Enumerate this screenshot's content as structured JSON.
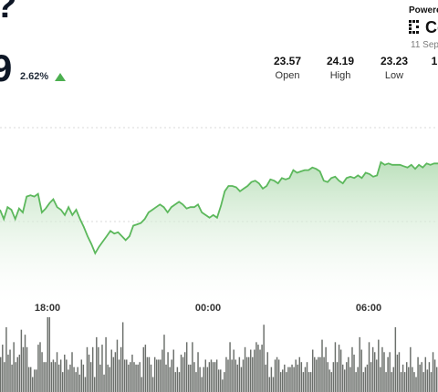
{
  "header": {
    "price_fragment_top": "?",
    "price_fragment": "9",
    "change_percent": "2.62%",
    "change_direction": "up"
  },
  "branding": {
    "powered_label": "Powere",
    "logo_text": "Co",
    "date": "11 Sep"
  },
  "stats": [
    {
      "value": "23.57",
      "label": "Open"
    },
    {
      "value": "24.19",
      "label": "High"
    },
    {
      "value": "23.23",
      "label": "Low"
    },
    {
      "value": "1",
      "label": ""
    }
  ],
  "chart_data": {
    "type": "area",
    "x_ticks": [
      "18:00",
      "00:00",
      "06:00"
    ],
    "colors": {
      "line": "#5cb85c",
      "fill_top": "#b9dfb9",
      "volume": "#6b6f6b",
      "grid": "#d9d9d9"
    },
    "price_y_range": [
      0,
      100
    ],
    "price_series": [
      62,
      55,
      64,
      62,
      55,
      63,
      60,
      72,
      73,
      72,
      74,
      60,
      63,
      67,
      70,
      64,
      62,
      58,
      64,
      58,
      62,
      55,
      49,
      42,
      36,
      29,
      34,
      38,
      42,
      46,
      44,
      45,
      42,
      39,
      42,
      50,
      51,
      52,
      55,
      60,
      62,
      64,
      66,
      64,
      60,
      64,
      66,
      68,
      66,
      63,
      64,
      64,
      66,
      60,
      58,
      56,
      58,
      56,
      65,
      76,
      80,
      80,
      79,
      76,
      78,
      80,
      83,
      84,
      82,
      78,
      80,
      85,
      84,
      82,
      86,
      85,
      86,
      92,
      90,
      91,
      92,
      92,
      94,
      93,
      91,
      84,
      83,
      86,
      87,
      84,
      82,
      86,
      87,
      86,
      88,
      86,
      90,
      89,
      87,
      88,
      98,
      96,
      97,
      96,
      96,
      96,
      95,
      94,
      96,
      93,
      96,
      94,
      97,
      96,
      97,
      97
    ],
    "volume_series": [
      14,
      19,
      12,
      26,
      15,
      17,
      11,
      20,
      12,
      14,
      15,
      25,
      18,
      23,
      18,
      10,
      10,
      6,
      9,
      9,
      19,
      20,
      16,
      12,
      12,
      30,
      30,
      12,
      13,
      12,
      16,
      11,
      13,
      8,
      15,
      13,
      9,
      11,
      16,
      10,
      8,
      10,
      7,
      13,
      11,
      6,
      18,
      15,
      12,
      18,
      6,
      22,
      18,
      11,
      19,
      7,
      22,
      11,
      10,
      17,
      14,
      16,
      21,
      13,
      18,
      28,
      13,
      13,
      11,
      12,
      15,
      12,
      11,
      11,
      12,
      6,
      18,
      19,
      14,
      14,
      11,
      6,
      14,
      13,
      13,
      13,
      17,
      23,
      11,
      16,
      10,
      13,
      17,
      8,
      10,
      8,
      15,
      14,
      16,
      20,
      11,
      11,
      20,
      12,
      8,
      16,
      10,
      6,
      10,
      13,
      10,
      12,
      13,
      12,
      12,
      13,
      9,
      9,
      5,
      8,
      14,
      13,
      20,
      13,
      17,
      13,
      11,
      14,
      10,
      13,
      18,
      14,
      14,
      17,
      14,
      17,
      20,
      19,
      17,
      19,
      27,
      11,
      16,
      6,
      10,
      6,
      13,
      14,
      13,
      8,
      9,
      11,
      8,
      10,
      10,
      11,
      10,
      13,
      11,
      14,
      12,
      8,
      10,
      12,
      8,
      8,
      17,
      14,
      13,
      14,
      14,
      21,
      14,
      18,
      12,
      9,
      8,
      12,
      20,
      12,
      19,
      17,
      11,
      9,
      12,
      14,
      10,
      18,
      15,
      8,
      10,
      22,
      17,
      8,
      10,
      11,
      20,
      12,
      18,
      16,
      13,
      21,
      10,
      18,
      16,
      8,
      14,
      16,
      8,
      10,
      26,
      15,
      16,
      8,
      11,
      8,
      12,
      10,
      18,
      10,
      8,
      6,
      14,
      11,
      12,
      8,
      14,
      9,
      12,
      8,
      16,
      13,
      10
    ]
  }
}
